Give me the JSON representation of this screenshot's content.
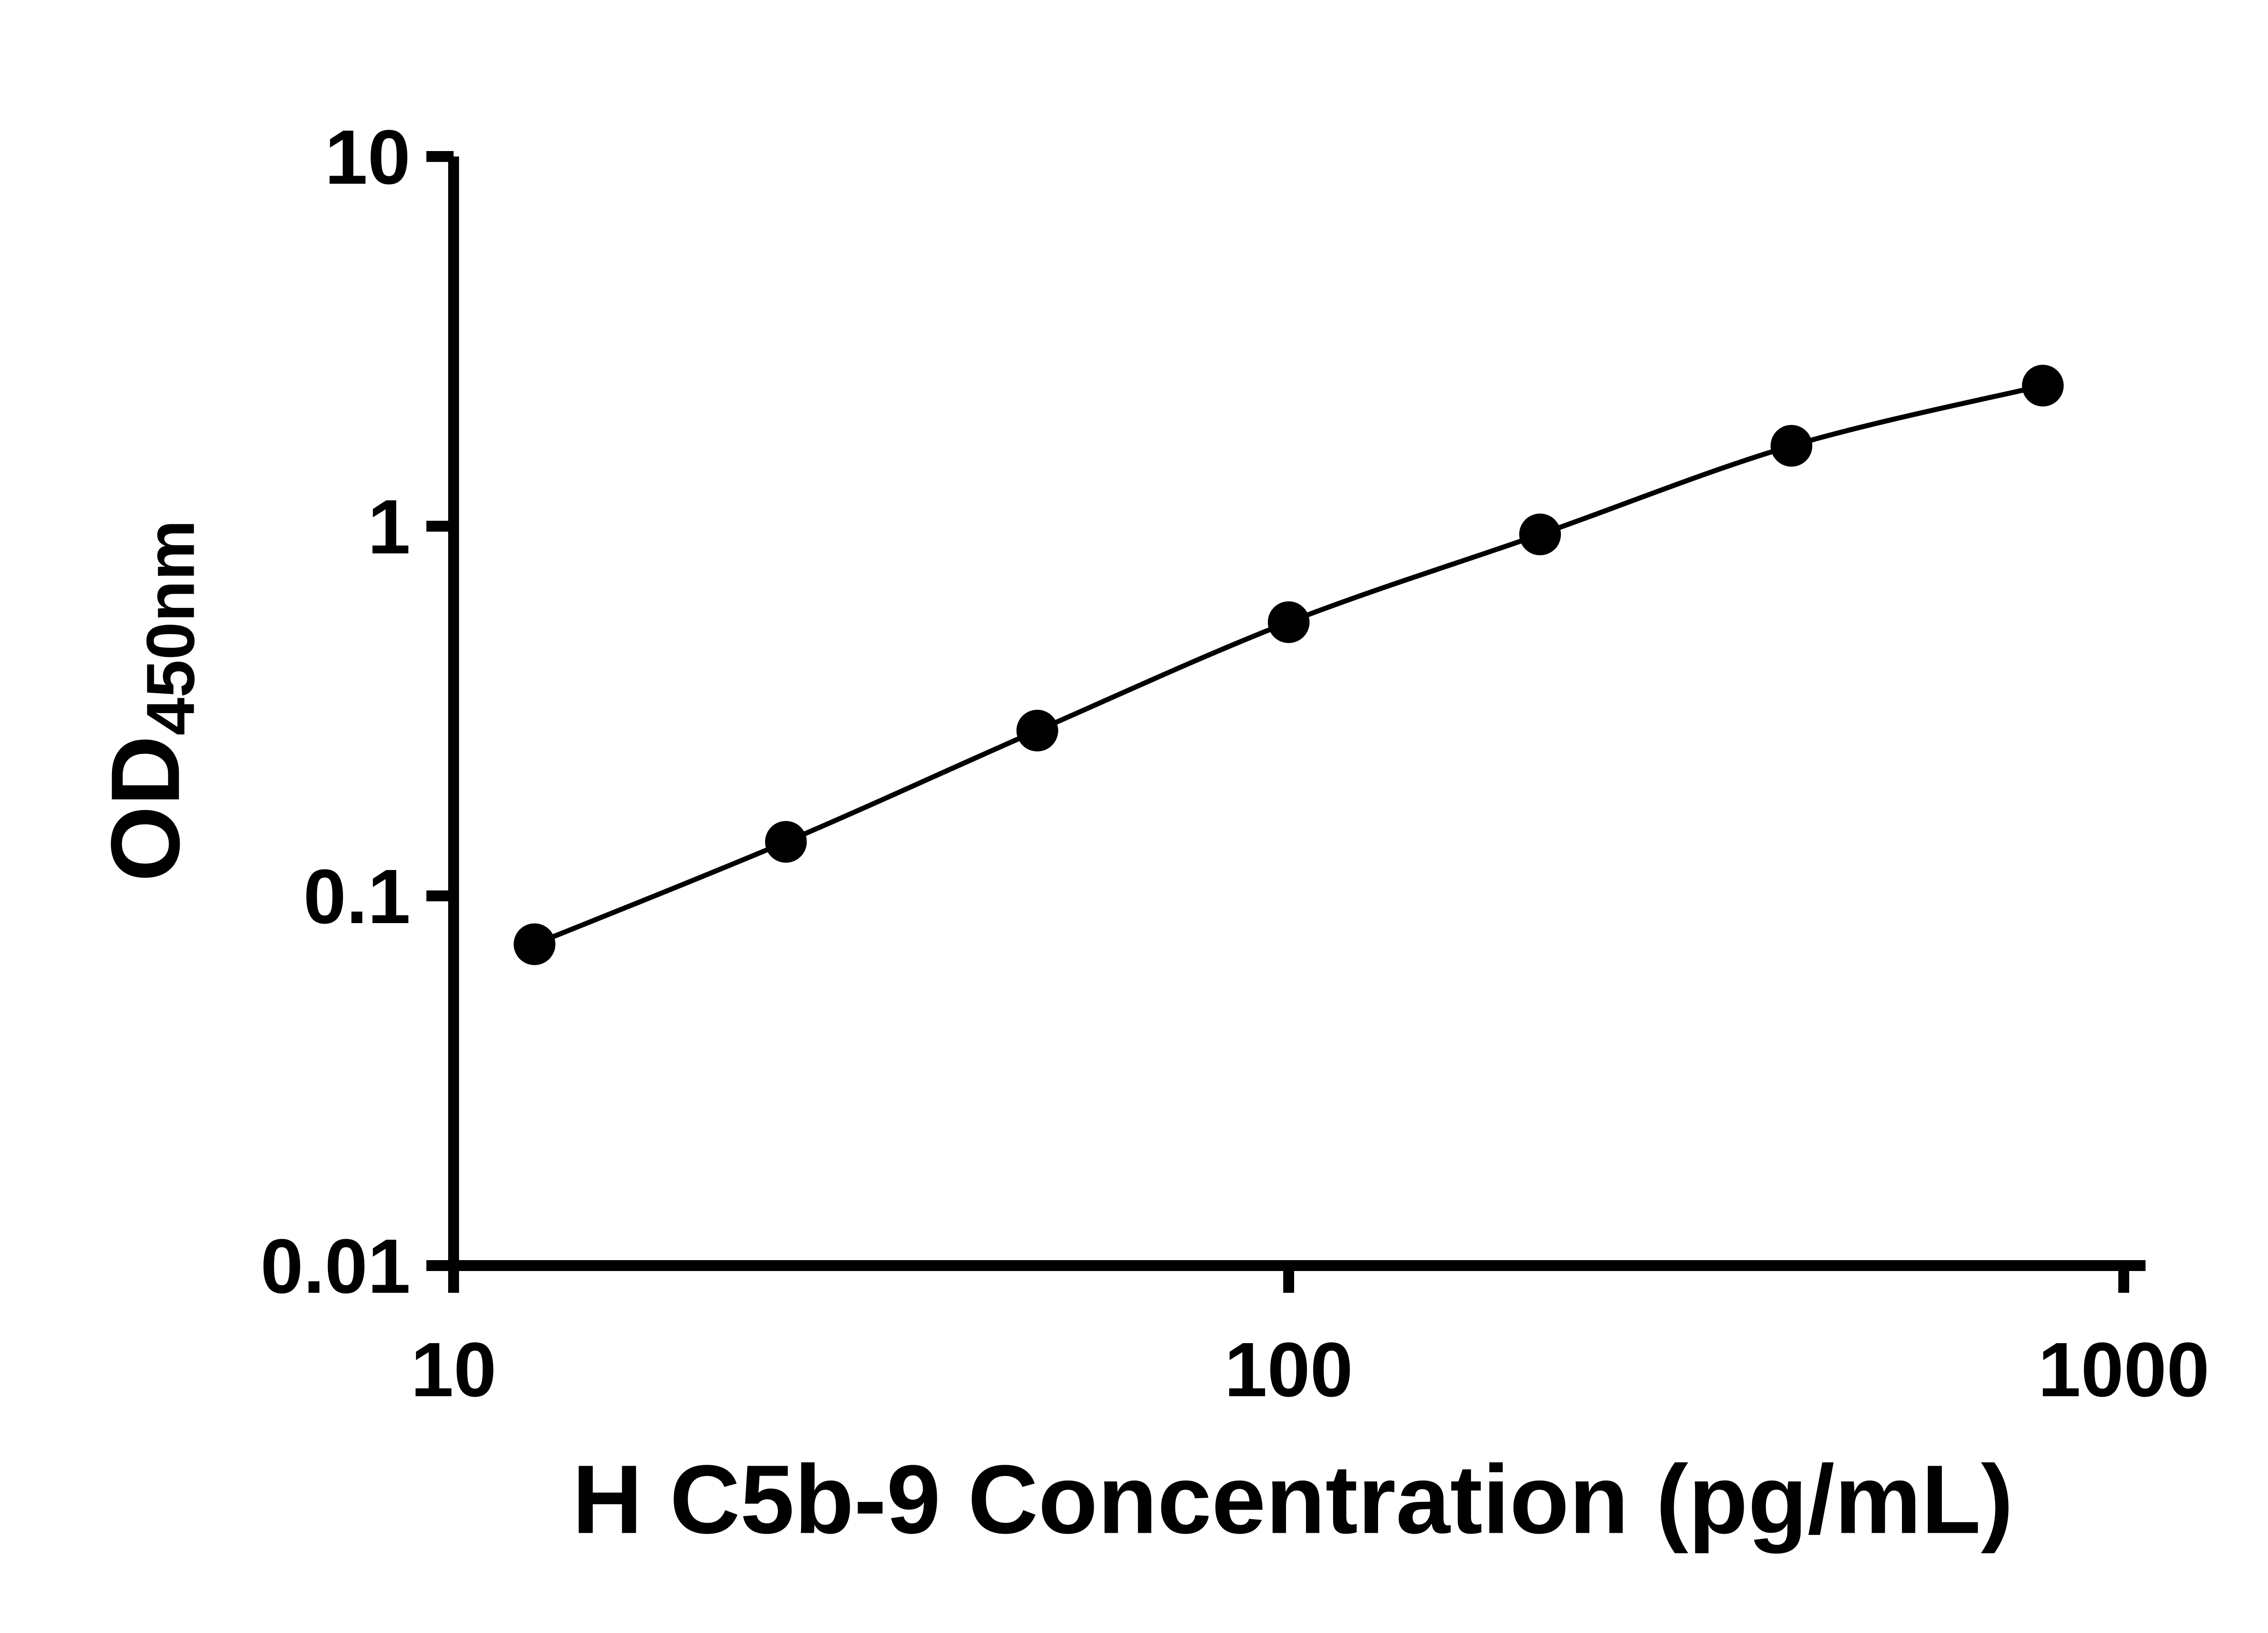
{
  "colors": {
    "foreground": "#000000",
    "background": "#ffffff"
  },
  "chart_data": {
    "type": "line",
    "title": "",
    "xlabel": "H C5b-9 Concentration (pg/mL)",
    "ylabel_main": "OD",
    "ylabel_sub": "450nm",
    "x_scale": "log",
    "y_scale": "log",
    "xlim": [
      10,
      1000
    ],
    "ylim": [
      0.01,
      10
    ],
    "grid": false,
    "legend": "none",
    "marker": "filled-circle",
    "line_style": "solid",
    "x_ticks": [
      {
        "value": 10,
        "label": "10"
      },
      {
        "value": 100,
        "label": "100"
      },
      {
        "value": 1000,
        "label": "1000"
      }
    ],
    "y_ticks": [
      {
        "value": 0.01,
        "label": "0.01"
      },
      {
        "value": 0.1,
        "label": "0.1"
      },
      {
        "value": 1,
        "label": "1"
      },
      {
        "value": 10,
        "label": "10"
      }
    ],
    "x": [
      12.5,
      25,
      50,
      100,
      200,
      400,
      800
    ],
    "y": [
      0.074,
      0.14,
      0.28,
      0.55,
      0.95,
      1.65,
      2.4
    ]
  }
}
